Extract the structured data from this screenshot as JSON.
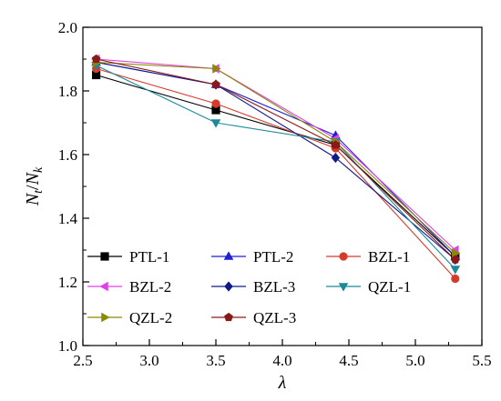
{
  "chart_data": {
    "type": "line",
    "x": [
      2.6,
      3.5,
      4.4,
      5.3
    ],
    "xlim": [
      2.5,
      5.5
    ],
    "ylim": [
      1.0,
      2.0
    ],
    "xticks": [
      "2.5",
      "3.0",
      "3.5",
      "4.0",
      "4.5",
      "5.0",
      "5.5"
    ],
    "yticks": [
      "1.0",
      "1.2",
      "1.4",
      "1.6",
      "1.8",
      "2.0"
    ],
    "xlabel": "λ",
    "ylabel": {
      "main": "N",
      "sub1": "t",
      "slash": "/",
      "sub2": "k"
    },
    "legend_position": "bottom-left",
    "grid": false,
    "series": [
      {
        "name": "PTL-1",
        "color": "#000000",
        "marker": "square",
        "values": [
          1.85,
          1.74,
          1.63,
          1.28
        ]
      },
      {
        "name": "PTL-2",
        "color": "#1f1fd6",
        "marker": "triangle-up",
        "values": [
          1.89,
          1.82,
          1.66,
          1.28
        ]
      },
      {
        "name": "BZL-1",
        "color": "#d63b2a",
        "marker": "circle",
        "values": [
          1.87,
          1.76,
          1.62,
          1.21
        ]
      },
      {
        "name": "BZL-2",
        "color": "#e040e8",
        "marker": "triangle-left",
        "values": [
          1.9,
          1.87,
          1.65,
          1.3
        ]
      },
      {
        "name": "BZL-3",
        "color": "#0e1a8a",
        "marker": "diamond",
        "values": [
          1.89,
          1.82,
          1.59,
          1.27
        ]
      },
      {
        "name": "QZL-1",
        "color": "#1a8a9a",
        "marker": "triangle-down",
        "values": [
          1.88,
          1.7,
          1.64,
          1.24
        ]
      },
      {
        "name": "QZL-2",
        "color": "#8a8a00",
        "marker": "triangle-right",
        "values": [
          1.89,
          1.87,
          1.64,
          1.29
        ]
      },
      {
        "name": "QZL-3",
        "color": "#8a1a1a",
        "marker": "pentagon",
        "values": [
          1.9,
          1.82,
          1.63,
          1.27
        ]
      }
    ]
  }
}
